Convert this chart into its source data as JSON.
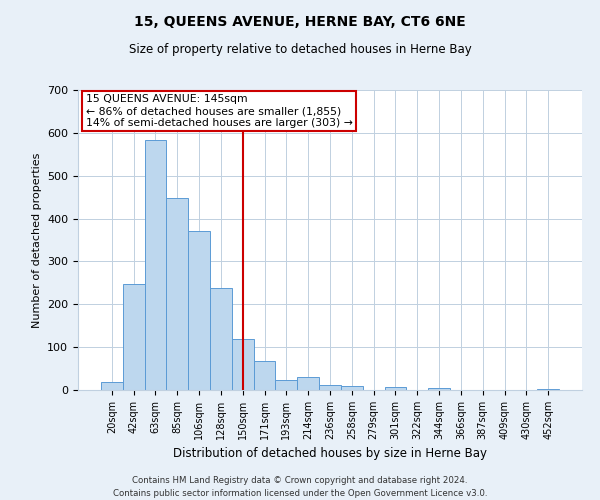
{
  "title": "15, QUEENS AVENUE, HERNE BAY, CT6 6NE",
  "subtitle": "Size of property relative to detached houses in Herne Bay",
  "xlabel": "Distribution of detached houses by size in Herne Bay",
  "ylabel": "Number of detached properties",
  "bar_labels": [
    "20sqm",
    "42sqm",
    "63sqm",
    "85sqm",
    "106sqm",
    "128sqm",
    "150sqm",
    "171sqm",
    "193sqm",
    "214sqm",
    "236sqm",
    "258sqm",
    "279sqm",
    "301sqm",
    "322sqm",
    "344sqm",
    "366sqm",
    "387sqm",
    "409sqm",
    "430sqm",
    "452sqm"
  ],
  "bar_values": [
    18,
    248,
    583,
    449,
    372,
    238,
    120,
    67,
    23,
    30,
    12,
    10,
    0,
    8,
    0,
    4,
    0,
    0,
    0,
    0,
    3
  ],
  "bar_color": "#bdd7ee",
  "bar_edge_color": "#5b9bd5",
  "property_line_x": 6,
  "annotation_title": "15 QUEENS AVENUE: 145sqm",
  "annotation_line1": "← 86% of detached houses are smaller (1,855)",
  "annotation_line2": "14% of semi-detached houses are larger (303) →",
  "line_color": "#cc0000",
  "annotation_box_color": "#cc0000",
  "ylim": [
    0,
    700
  ],
  "yticks": [
    0,
    100,
    200,
    300,
    400,
    500,
    600,
    700
  ],
  "footer_line1": "Contains HM Land Registry data © Crown copyright and database right 2024.",
  "footer_line2": "Contains public sector information licensed under the Open Government Licence v3.0.",
  "bg_color": "#e8f0f8",
  "plot_bg_color": "#ffffff"
}
